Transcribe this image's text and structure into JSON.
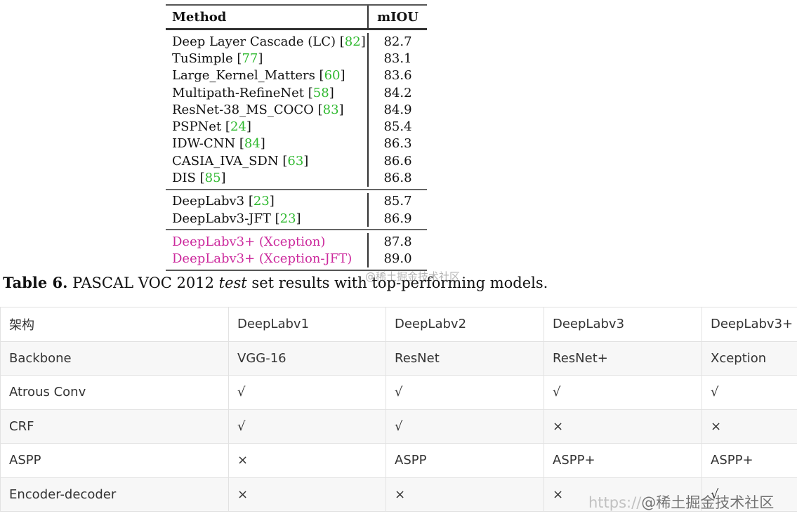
{
  "paper_table": {
    "header": {
      "method": "Method",
      "miou": "mIOU"
    },
    "groups": [
      [
        {
          "name": "Deep Layer Cascade (LC)",
          "cite": "82",
          "miou": "82.7"
        },
        {
          "name": "TuSimple",
          "cite": "77",
          "miou": "83.1"
        },
        {
          "name": "Large_Kernel_Matters",
          "cite": "60",
          "miou": "83.6"
        },
        {
          "name": "Multipath-RefineNet",
          "cite": "58",
          "miou": "84.2"
        },
        {
          "name": "ResNet-38_MS_COCO",
          "cite": "83",
          "miou": "84.9"
        },
        {
          "name": "PSPNet",
          "cite": "24",
          "miou": "85.4"
        },
        {
          "name": "IDW-CNN",
          "cite": "84",
          "miou": "86.3"
        },
        {
          "name": "CASIA_IVA_SDN",
          "cite": "63",
          "miou": "86.6"
        },
        {
          "name": "DIS",
          "cite": "85",
          "miou": "86.8"
        }
      ],
      [
        {
          "name": "DeepLabv3",
          "cite": "23",
          "miou": "85.7"
        },
        {
          "name": "DeepLabv3-JFT",
          "cite": "23",
          "miou": "86.9"
        }
      ],
      [
        {
          "name": "DeepLabv3+ (Xception)",
          "cite": "",
          "miou": "87.8",
          "highlight": true
        },
        {
          "name": "DeepLabv3+ (Xception-JFT)",
          "cite": "",
          "miou": "89.0",
          "highlight": true
        }
      ]
    ],
    "caption": {
      "label": "Table 6.",
      "pre": " PASCAL VOC 2012 ",
      "em": "test",
      "post": " set results with top-performing models."
    }
  },
  "comparison_table": {
    "rows": [
      [
        "架构",
        "DeepLabv1",
        "DeepLabv2",
        "DeepLabv3",
        "DeepLabv3+"
      ],
      [
        "Backbone",
        "VGG-16",
        "ResNet",
        "ResNet+",
        "Xception"
      ],
      [
        "Atrous Conv",
        "√",
        "√",
        "√",
        "√"
      ],
      [
        "CRF",
        "√",
        "√",
        "×",
        "×"
      ],
      [
        "ASPP",
        "×",
        "ASPP",
        "ASPP+",
        "ASPP+"
      ],
      [
        "Encoder-decoder",
        "×",
        "×",
        "×",
        "√"
      ]
    ]
  },
  "watermarks": {
    "caption_overlay": "@稀土掘金技术社区",
    "bottom_url": "https://",
    "bottom_site": "@稀土掘金技术社区"
  },
  "colors": {
    "cite": "#2fb92f",
    "highlight": "#cc2a9d"
  }
}
